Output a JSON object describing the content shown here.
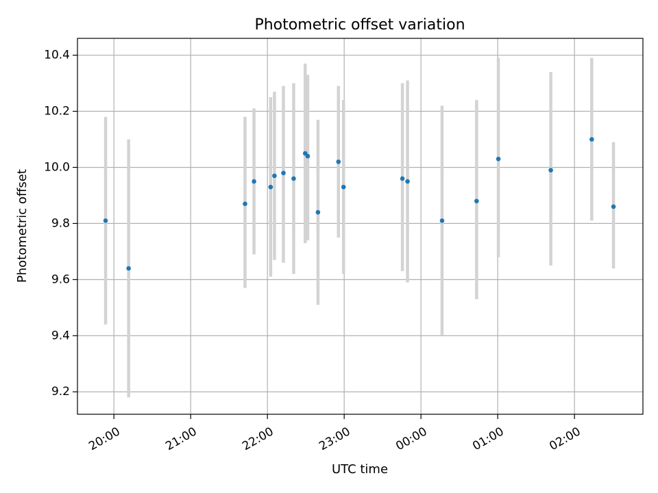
{
  "chart_data": {
    "type": "scatter",
    "title": "Photometric offset variation",
    "xlabel": "UTC time",
    "ylabel": "Photometric offset",
    "x_ticks": [
      "20:00",
      "21:00",
      "22:00",
      "23:00",
      "00:00",
      "01:00",
      "02:00"
    ],
    "y_ticks": [
      "9.2",
      "9.4",
      "9.6",
      "9.8",
      "10.0",
      "10.2",
      "10.4"
    ],
    "y_tick_values": [
      9.2,
      9.4,
      9.6,
      9.8,
      10.0,
      10.2,
      10.4
    ],
    "x_tick_values": [
      "19:59:30",
      "20:59:30",
      "21:59:30",
      "22:59:30",
      "23:59:30",
      "00:59:30",
      "01:59:30"
    ],
    "xlim": [
      "19:31",
      "02:53"
    ],
    "ylim": [
      9.12,
      10.46
    ],
    "grid": true,
    "marker_color": "#1f77b4",
    "errorbar_color": "#d3d3d3",
    "points": [
      {
        "x": "19:53",
        "y": 9.81,
        "low": 9.44,
        "high": 10.18
      },
      {
        "x": "20:11",
        "y": 9.64,
        "low": 9.18,
        "high": 10.1
      },
      {
        "x": "21:42",
        "y": 9.87,
        "low": 9.57,
        "high": 10.18
      },
      {
        "x": "21:49",
        "y": 9.95,
        "low": 9.69,
        "high": 10.21
      },
      {
        "x": "22:02",
        "y": 9.93,
        "low": 9.61,
        "high": 10.25
      },
      {
        "x": "22:05",
        "y": 9.97,
        "low": 9.67,
        "high": 10.27
      },
      {
        "x": "22:12",
        "y": 9.98,
        "low": 9.66,
        "high": 10.29
      },
      {
        "x": "22:20",
        "y": 9.96,
        "low": 9.62,
        "high": 10.3
      },
      {
        "x": "22:29",
        "y": 10.05,
        "low": 9.73,
        "high": 10.37
      },
      {
        "x": "22:31",
        "y": 10.04,
        "low": 9.74,
        "high": 10.33
      },
      {
        "x": "22:39",
        "y": 9.84,
        "low": 9.51,
        "high": 10.17
      },
      {
        "x": "22:55",
        "y": 10.02,
        "low": 9.75,
        "high": 10.29
      },
      {
        "x": "22:59",
        "y": 9.93,
        "low": 9.62,
        "high": 10.24
      },
      {
        "x": "23:45",
        "y": 9.96,
        "low": 9.63,
        "high": 10.3
      },
      {
        "x": "23:49",
        "y": 9.95,
        "low": 9.59,
        "high": 10.31
      },
      {
        "x": "00:16",
        "y": 9.81,
        "low": 9.4,
        "high": 10.22
      },
      {
        "x": "00:43",
        "y": 9.88,
        "low": 9.53,
        "high": 10.24
      },
      {
        "x": "01:00",
        "y": 10.03,
        "low": 9.68,
        "high": 10.39
      },
      {
        "x": "01:41",
        "y": 9.99,
        "low": 9.65,
        "high": 10.34
      },
      {
        "x": "02:13",
        "y": 10.1,
        "low": 9.81,
        "high": 10.39
      },
      {
        "x": "02:30",
        "y": 9.86,
        "low": 9.64,
        "high": 10.09
      }
    ]
  }
}
